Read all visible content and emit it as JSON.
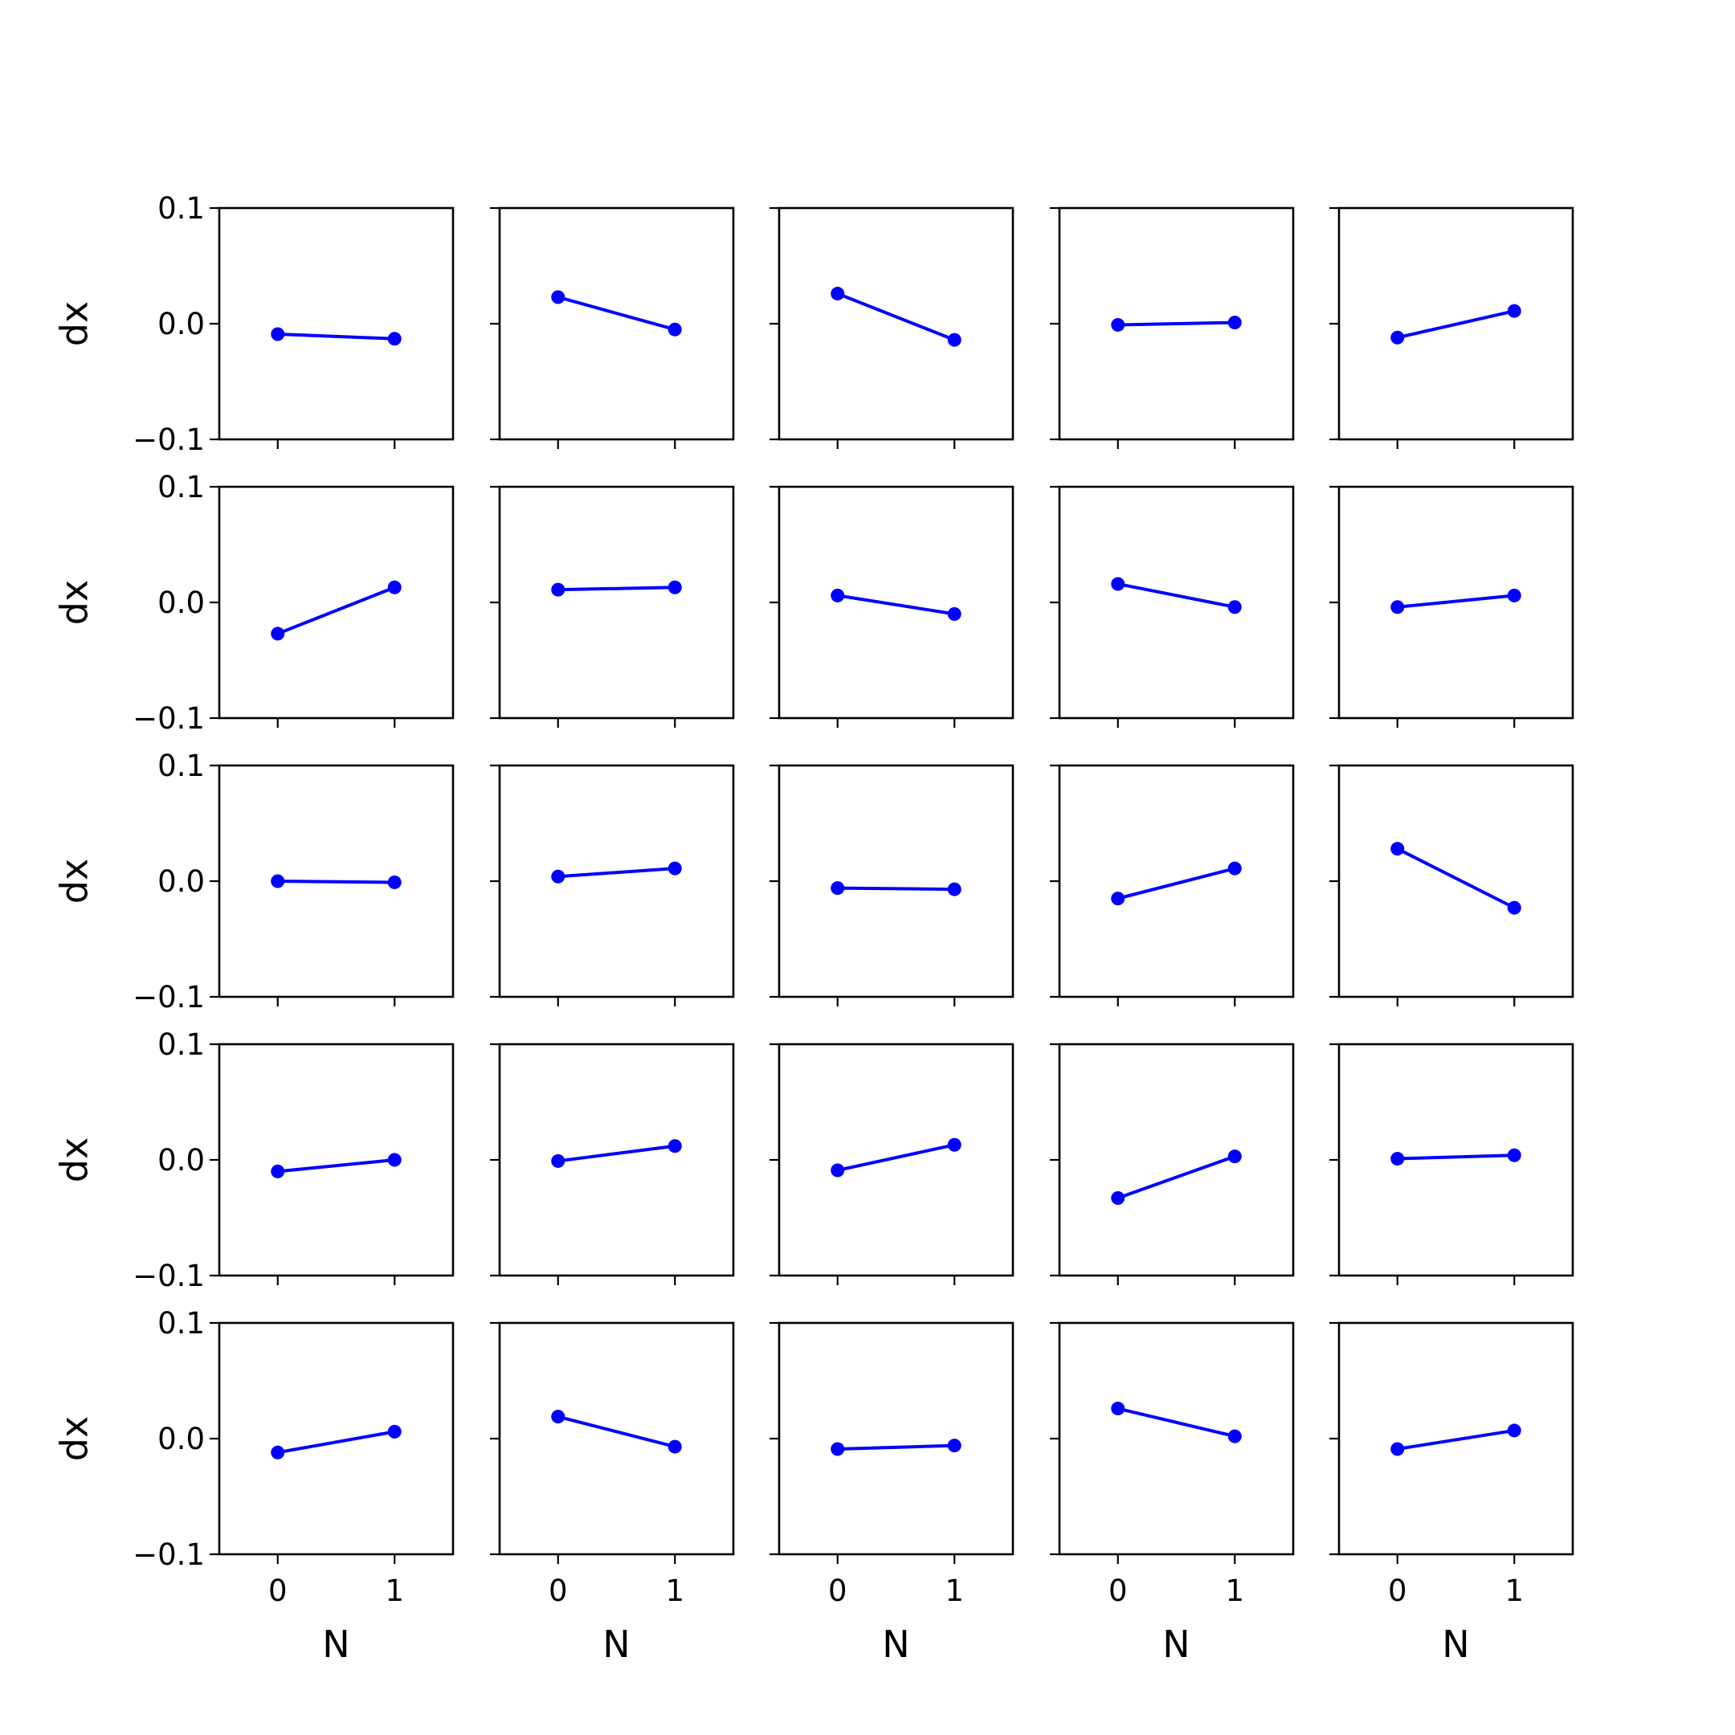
{
  "figure": {
    "line_color": "#0000ff",
    "frame_color": "#000000",
    "background": "#ffffff"
  },
  "chart_data": {
    "type": "line",
    "layout": "grid",
    "rows": 5,
    "cols": 5,
    "xlabel": "N",
    "ylabel": "dx",
    "xlim": [
      -0.5,
      1.5
    ],
    "ylim": [
      -0.1,
      0.1
    ],
    "xticks": [
      0,
      1
    ],
    "xtick_labels": [
      "0",
      "1"
    ],
    "yticks": [
      0.1,
      0.0,
      -0.1
    ],
    "ytick_labels": [
      "0.1",
      "0.0",
      "−0.1"
    ],
    "grid": false,
    "x": [
      0,
      1
    ],
    "panels": [
      [
        [
          -0.009,
          -0.013
        ],
        [
          0.023,
          -0.005
        ],
        [
          0.026,
          -0.014
        ],
        [
          -0.001,
          0.001
        ],
        [
          -0.012,
          0.011
        ]
      ],
      [
        [
          -0.027,
          0.013
        ],
        [
          0.011,
          0.013
        ],
        [
          0.006,
          -0.01
        ],
        [
          0.016,
          -0.004
        ],
        [
          -0.004,
          0.006
        ]
      ],
      [
        [
          0.0,
          -0.001
        ],
        [
          0.004,
          0.011
        ],
        [
          -0.006,
          -0.007
        ],
        [
          -0.015,
          0.011
        ],
        [
          0.028,
          -0.023
        ]
      ],
      [
        [
          -0.01,
          0.0
        ],
        [
          -0.001,
          0.012
        ],
        [
          -0.009,
          0.013
        ],
        [
          -0.033,
          0.003
        ],
        [
          0.001,
          0.004
        ]
      ],
      [
        [
          -0.012,
          0.006
        ],
        [
          0.019,
          -0.007
        ],
        [
          -0.009,
          -0.006
        ],
        [
          0.026,
          0.002
        ],
        [
          -0.009,
          0.007
        ]
      ]
    ]
  }
}
